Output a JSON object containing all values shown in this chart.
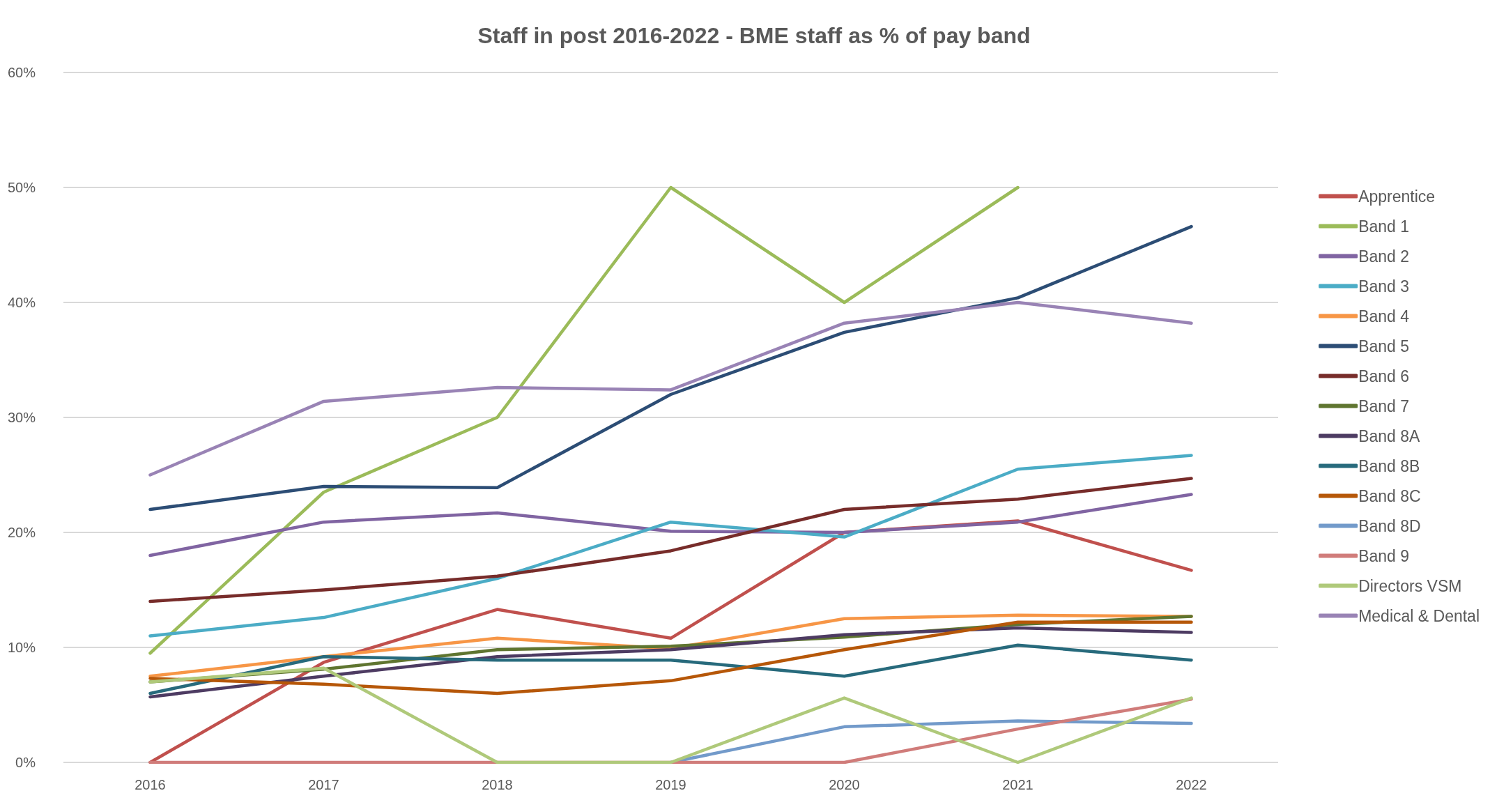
{
  "chart_data": {
    "type": "line",
    "title": "Staff in post 2016-2022 - BME staff as % of pay band",
    "categories": [
      "2016",
      "2017",
      "2018",
      "2019",
      "2020",
      "2021",
      "2022"
    ],
    "ylim": [
      0,
      60
    ],
    "yticks": [
      {
        "value": 0,
        "label": "0%"
      },
      {
        "value": 10,
        "label": "10%"
      },
      {
        "value": 20,
        "label": "20%"
      },
      {
        "value": 30,
        "label": "30%"
      },
      {
        "value": 40,
        "label": "40%"
      },
      {
        "value": 50,
        "label": "50%"
      },
      {
        "value": 60,
        "label": "60%"
      }
    ],
    "grid": "y",
    "legend": "right",
    "marker": "none",
    "line_style": "solid",
    "series": [
      {
        "name": "Apprentice",
        "color": "#c0504d",
        "values": [
          0,
          8.7,
          13.3,
          10.8,
          20,
          21,
          16.7
        ]
      },
      {
        "name": "Band 1",
        "color": "#9bbb59",
        "values": [
          9.5,
          23.5,
          30,
          50,
          40,
          50,
          null
        ]
      },
      {
        "name": "Band 2",
        "color": "#8064a2",
        "values": [
          18,
          20.9,
          21.7,
          20.1,
          20,
          20.9,
          23.3
        ]
      },
      {
        "name": "Band 3",
        "color": "#4bacc6",
        "values": [
          11,
          12.6,
          16,
          20.9,
          19.6,
          25.5,
          26.7
        ]
      },
      {
        "name": "Band 4",
        "color": "#f79646",
        "values": [
          7.5,
          9.2,
          10.8,
          9.9,
          12.5,
          12.8,
          12.7
        ]
      },
      {
        "name": "Band 5",
        "color": "#2c4d75",
        "values": [
          22,
          24,
          23.9,
          32,
          37.4,
          40.4,
          46.6
        ]
      },
      {
        "name": "Band 6",
        "color": "#772c2a",
        "values": [
          14,
          15,
          16.2,
          18.4,
          22,
          22.9,
          24.7
        ]
      },
      {
        "name": "Band 7",
        "color": "#5f7530",
        "values": [
          7,
          8.1,
          9.8,
          10.1,
          10.9,
          12,
          12.7
        ]
      },
      {
        "name": "Band 8A",
        "color": "#4d3b62",
        "values": [
          5.7,
          7.5,
          9.2,
          9.8,
          11.1,
          11.7,
          11.3
        ]
      },
      {
        "name": "Band 8B",
        "color": "#276a7c",
        "values": [
          6,
          9.2,
          8.9,
          8.9,
          7.5,
          10.2,
          8.9
        ]
      },
      {
        "name": "Band 8C",
        "color": "#b65708",
        "values": [
          7.3,
          6.8,
          6,
          7.1,
          9.8,
          12.2,
          12.2
        ]
      },
      {
        "name": "Band 8D",
        "color": "#729aca",
        "values": [
          null,
          null,
          null,
          0,
          3.1,
          3.6,
          3.4
        ]
      },
      {
        "name": "Band 9",
        "color": "#d07c7a",
        "values": [
          0,
          0,
          0,
          0,
          0,
          2.9,
          5.5
        ]
      },
      {
        "name": "Directors VSM",
        "color": "#afc97a",
        "values": [
          7,
          8.2,
          0,
          0,
          5.6,
          0,
          5.6
        ]
      },
      {
        "name": "Medical & Dental",
        "color": "#9983b5",
        "values": [
          25,
          31.4,
          32.6,
          32.4,
          38.2,
          40,
          38.2
        ]
      }
    ]
  }
}
